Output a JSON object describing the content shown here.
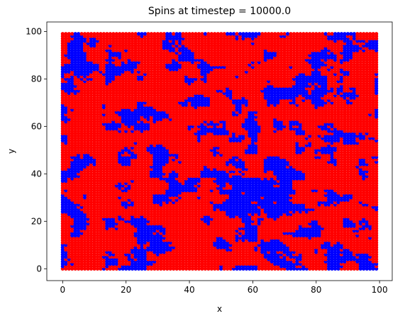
{
  "chart_data": {
    "type": "scatter",
    "title": "Spins at timestep = 10000.0",
    "xlabel": "x",
    "ylabel": "y",
    "xlim": [
      -5,
      104
    ],
    "ylim": [
      -5,
      104
    ],
    "xticks": [
      0,
      20,
      40,
      60,
      80,
      100
    ],
    "yticks": [
      0,
      20,
      40,
      60,
      80,
      100
    ],
    "xtick_labels": [
      "0",
      "20",
      "40",
      "60",
      "80",
      "100"
    ],
    "ytick_labels": [
      "0",
      "20",
      "40",
      "60",
      "80",
      "100"
    ],
    "grid": false,
    "lattice": {
      "x_min": 0,
      "x_max": 99,
      "y_min": 0,
      "y_max": 99,
      "step": 1
    },
    "colors": {
      "spin_up": "#ff0000",
      "spin_down": "#0000ff"
    },
    "spin_down_fraction_approx": 0.3
  }
}
